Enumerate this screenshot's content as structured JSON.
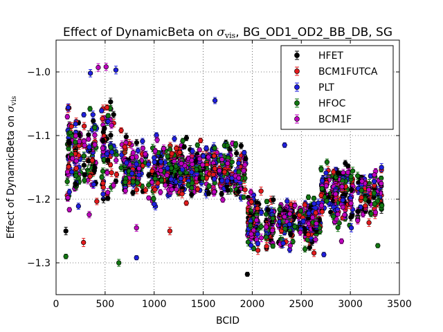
{
  "chart_data": {
    "type": "scatter",
    "title": "Effect of DynamicBeta on σvis, BG_OD1_OD2_BB_DB, SG",
    "title_main": "Effect of DynamicBeta on ",
    "title_sigma": "σ",
    "title_sub": "vis",
    "title_rest": ", BG_OD1_OD2_BB_DB, SG",
    "xlabel": "BCID",
    "ylabel": "Effect of DynamicBeta on σvis",
    "ylabel_main": "Effect of DynamicBeta on ",
    "ylabel_sigma": "σ",
    "ylabel_sub": "vis",
    "xlim": [
      0,
      3500
    ],
    "ylim": [
      -1.35,
      -0.95
    ],
    "xticks": [
      0,
      500,
      1000,
      1500,
      2000,
      2500,
      3000,
      3500
    ],
    "xtick_labels": [
      "0",
      "500",
      "1000",
      "1500",
      "2000",
      "2500",
      "3000",
      "3500"
    ],
    "yticks": [
      -1.3,
      -1.2,
      -1.1,
      -1.0
    ],
    "ytick_labels": [
      "−1.3",
      "−1.2",
      "−1.1",
      "−1.0"
    ],
    "grid": true,
    "legend_position": "top-right",
    "series": [
      {
        "name": "HFET",
        "color": "#000000"
      },
      {
        "name": "BCM1FUTCA",
        "color": "#e31a1c"
      },
      {
        "name": "PLT",
        "color": "#1f1fe0"
      },
      {
        "name": "HFOC",
        "color": "#117711"
      },
      {
        "name": "BCM1F",
        "color": "#bf00bf"
      }
    ],
    "point_groups": [
      {
        "x": [
          100,
          680
        ],
        "y_center": -1.13,
        "spread": 0.11,
        "count": 45
      },
      {
        "x": [
          680,
          1950
        ],
        "y_center": -1.155,
        "spread": 0.06,
        "count": 120
      },
      {
        "x": [
          1950,
          2700
        ],
        "y_center": -1.235,
        "spread": 0.05,
        "count": 75
      },
      {
        "x": [
          2700,
          3320
        ],
        "y_center": -1.19,
        "spread": 0.06,
        "count": 55
      }
    ],
    "outliers": [
      {
        "series": "HFET",
        "x": 1950,
        "y": -1.318
      },
      {
        "series": "HFOC",
        "x": 100,
        "y": -1.29
      },
      {
        "series": "HFOC",
        "x": 640,
        "y": -1.3
      },
      {
        "series": "PLT",
        "x": 820,
        "y": -1.292
      },
      {
        "series": "PLT",
        "x": 2330,
        "y": -1.115
      },
      {
        "series": "PLT",
        "x": 1620,
        "y": -1.045
      },
      {
        "series": "HFET",
        "x": 100,
        "y": -1.25
      },
      {
        "series": "BCM1FUTCA",
        "x": 280,
        "y": -1.268
      },
      {
        "series": "BCM1FUTCA",
        "x": 1160,
        "y": -1.25
      },
      {
        "series": "BCM1F",
        "x": 820,
        "y": -1.245
      },
      {
        "series": "PLT",
        "x": 2730,
        "y": -1.287
      },
      {
        "series": "BCM1F",
        "x": 2910,
        "y": -1.266
      },
      {
        "series": "PLT",
        "x": 3010,
        "y": -1.245
      },
      {
        "series": "HFOC",
        "x": 3280,
        "y": -1.273
      },
      {
        "series": "PLT",
        "x": 350,
        "y": -1.002
      },
      {
        "series": "BCM1F",
        "x": 430,
        "y": -0.993
      },
      {
        "series": "BCM1F",
        "x": 510,
        "y": -0.992
      },
      {
        "series": "PLT",
        "x": 610,
        "y": -0.997
      }
    ]
  }
}
